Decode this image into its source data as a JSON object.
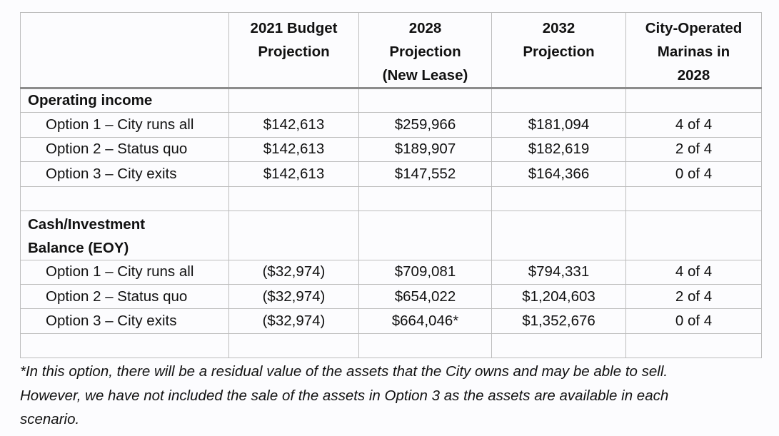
{
  "table": {
    "columns": [
      "",
      "2021 Budget Projection",
      "2028 Projection (New Lease)",
      "2032 Projection",
      "City-Operated Marinas in 2028"
    ],
    "header_lines": [
      [],
      [
        "2021 Budget",
        "Projection"
      ],
      [
        "2028",
        "Projection",
        "(New Lease)"
      ],
      [
        "2032",
        "Projection"
      ],
      [
        "City-Operated",
        "Marinas in",
        "2028"
      ]
    ],
    "operating": {
      "title": "Operating income",
      "rows": [
        {
          "label": "Option 1 – City runs all",
          "v2021": "$142,613",
          "v2028": "$259,966",
          "v2032": "$181,094",
          "marinas": "4 of 4"
        },
        {
          "label": "Option 2 – Status quo",
          "v2021": "$142,613",
          "v2028": "$189,907",
          "v2032": "$182,619",
          "marinas": "2 of 4"
        },
        {
          "label": "Option 3 – City exits",
          "v2021": "$142,613",
          "v2028": "$147,552",
          "v2032": "$164,366",
          "marinas": "0 of 4"
        }
      ]
    },
    "cash": {
      "title_line1": "Cash/Investment",
      "title_line2": "Balance (EOY)",
      "rows": [
        {
          "label": "Option 1 – City runs all",
          "v2021": "($32,974)",
          "v2028": "$709,081",
          "v2032": "$794,331",
          "marinas": "4 of 4"
        },
        {
          "label": "Option 2 – Status quo",
          "v2021": "($32,974)",
          "v2028": "$654,022",
          "v2032": "$1,204,603",
          "marinas": "2 of 4"
        },
        {
          "label": "Option 3 – City exits",
          "v2021": "($32,974)",
          "v2028": "$664,046*",
          "v2032": "$1,352,676",
          "marinas": "0 of 4"
        }
      ]
    }
  },
  "footnote": {
    "line1": "*In this option, there will be a residual value of the assets that the City owns and may be able to sell.",
    "line2": "However, we have not included the sale of the assets in Option 3 as the assets are available in each",
    "line3": "scenario."
  },
  "colors": {
    "border": "#bdbdbd",
    "header_rule": "#8c8c8c",
    "background": "#fcfcfe",
    "text": "#111111"
  }
}
